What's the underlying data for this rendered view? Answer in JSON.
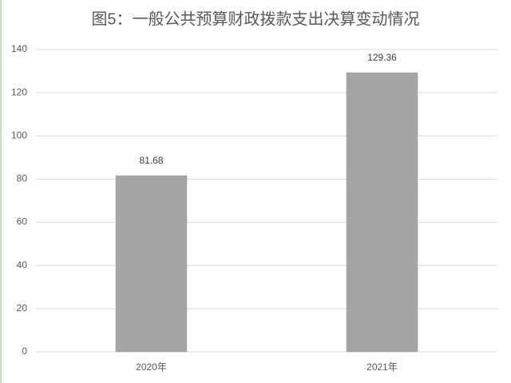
{
  "chart_data": {
    "type": "bar",
    "title": "图5：一般公共预算财政拨款支出决算变动情况",
    "categories": [
      "2020年",
      "2021年"
    ],
    "values": [
      81.68,
      129.36
    ],
    "color": "#a5a5a5",
    "ylim": [
      0,
      140
    ],
    "yticks": [
      0,
      20,
      40,
      60,
      80,
      100,
      120,
      140
    ],
    "grid": true
  }
}
